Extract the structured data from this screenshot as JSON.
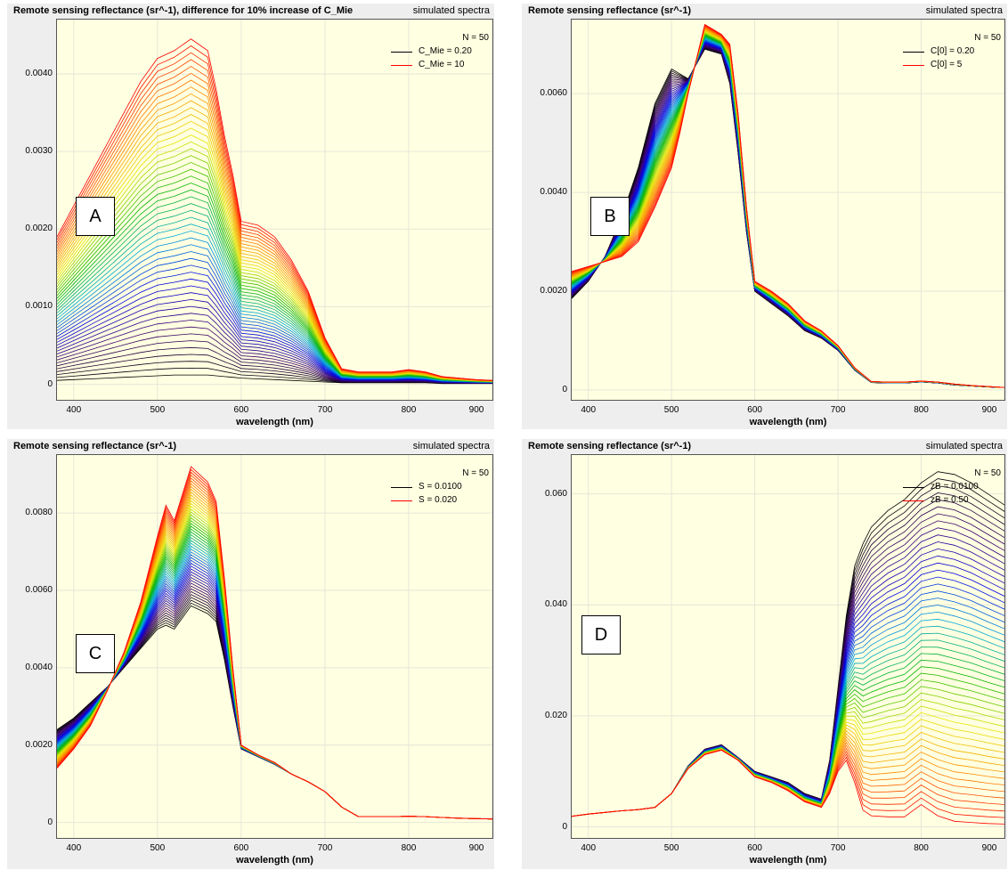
{
  "colors": {
    "background": "#eeeeee",
    "plot_bg": "#ffffe1",
    "grid": "#e6e6d8",
    "start": "#000000",
    "end": "#ff0000"
  },
  "panels": [
    {
      "title": "Remote sensing reflectance (sr^-1), difference for 10% increase of C_Mie",
      "subtitle": "simulated spectra",
      "label": "A",
      "xlabel": "wavelength (nm)",
      "n_label": "N = 50",
      "legend": [
        "C_Mie = 0.20",
        "C_Mie = 10"
      ],
      "yticks": [
        "0",
        "0.0010",
        "0.0020",
        "0.0030",
        "0.0040"
      ],
      "xticks": [
        "400",
        "500",
        "600",
        "700",
        "800",
        "900"
      ],
      "chart_data": {
        "type": "line",
        "n_series": 50,
        "xlim": [
          380,
          900
        ],
        "ylim": [
          -0.0002,
          0.0047
        ],
        "x": [
          380,
          400,
          420,
          440,
          460,
          480,
          500,
          520,
          540,
          560,
          570,
          580,
          590,
          600,
          620,
          640,
          660,
          680,
          700,
          720,
          740,
          760,
          780,
          800,
          820,
          840,
          860,
          880,
          900
        ],
        "start": [
          5e-05,
          6e-05,
          7e-05,
          8e-05,
          9e-05,
          0.0001,
          0.00011,
          0.00012,
          0.00012,
          0.00012,
          0.00011,
          0.0001,
          9e-05,
          8e-05,
          7e-05,
          6e-05,
          5e-05,
          4e-05,
          3e-05,
          2e-05,
          2e-05,
          2e-05,
          2e-05,
          2e-05,
          2e-05,
          1e-05,
          1e-05,
          1e-05,
          1e-05
        ],
        "end": [
          0.0019,
          0.0023,
          0.0027,
          0.0031,
          0.0035,
          0.0039,
          0.0042,
          0.0043,
          0.00445,
          0.0043,
          0.0038,
          0.0032,
          0.0027,
          0.0021,
          0.00205,
          0.0019,
          0.0016,
          0.0012,
          0.0006,
          0.0002,
          0.00016,
          0.00016,
          0.00016,
          0.00019,
          0.00016,
          0.0001,
          8e-05,
          6e-05,
          5e-05
        ]
      }
    },
    {
      "title": "Remote sensing reflectance (sr^-1)",
      "subtitle": "simulated spectra",
      "label": "B",
      "xlabel": "wavelength (nm)",
      "n_label": "N = 50",
      "legend": [
        "C[0] = 0.20",
        "C[0] = 5"
      ],
      "yticks": [
        "0",
        "0.0020",
        "0.0040",
        "0.0060"
      ],
      "xticks": [
        "400",
        "500",
        "600",
        "700",
        "800",
        "900"
      ],
      "chart_data": {
        "type": "line",
        "n_series": 50,
        "xlim": [
          380,
          900
        ],
        "ylim": [
          -0.0002,
          0.0075
        ],
        "x": [
          380,
          400,
          420,
          440,
          460,
          480,
          500,
          510,
          520,
          540,
          560,
          570,
          580,
          590,
          600,
          620,
          640,
          660,
          680,
          700,
          720,
          740,
          760,
          780,
          800,
          820,
          840,
          860,
          880,
          900
        ],
        "start": [
          0.00185,
          0.0022,
          0.0027,
          0.0035,
          0.0045,
          0.0058,
          0.0065,
          0.0064,
          0.0063,
          0.0069,
          0.0068,
          0.0062,
          0.0048,
          0.0032,
          0.002,
          0.00175,
          0.0015,
          0.0012,
          0.00105,
          0.0008,
          0.0004,
          0.00015,
          0.00014,
          0.00014,
          0.00016,
          0.00014,
          0.0001,
          8e-05,
          6e-05,
          5e-05
        ],
        "end": [
          0.0024,
          0.0025,
          0.0026,
          0.0027,
          0.003,
          0.0037,
          0.0045,
          0.0052,
          0.006,
          0.0074,
          0.0072,
          0.007,
          0.0056,
          0.0037,
          0.0022,
          0.002,
          0.00175,
          0.0014,
          0.0012,
          0.0009,
          0.00045,
          0.00017,
          0.00016,
          0.00016,
          0.00018,
          0.00016,
          0.00012,
          9e-05,
          7e-05,
          5e-05
        ]
      }
    },
    {
      "title": "Remote sensing reflectance (sr^-1)",
      "subtitle": "simulated spectra",
      "label": "C",
      "xlabel": "wavelength (nm)",
      "n_label": "N = 50",
      "legend": [
        "S = 0.0100",
        "S = 0.020"
      ],
      "yticks": [
        "0",
        "0.0020",
        "0.0040",
        "0.0060",
        "0.0080"
      ],
      "xticks": [
        "400",
        "500",
        "600",
        "700",
        "800",
        "900"
      ],
      "chart_data": {
        "type": "line",
        "n_series": 50,
        "xlim": [
          380,
          900
        ],
        "ylim": [
          -0.0004,
          0.0095
        ],
        "x": [
          380,
          400,
          420,
          440,
          460,
          480,
          500,
          510,
          520,
          540,
          560,
          570,
          580,
          590,
          600,
          620,
          640,
          660,
          680,
          700,
          720,
          740,
          760,
          780,
          800,
          820,
          840,
          860,
          880,
          900
        ],
        "start": [
          0.0024,
          0.0027,
          0.0031,
          0.0035,
          0.004,
          0.0045,
          0.005,
          0.0051,
          0.005,
          0.0056,
          0.0054,
          0.0052,
          0.0042,
          0.003,
          0.0019,
          0.0017,
          0.0015,
          0.00125,
          0.00105,
          0.0008,
          0.0004,
          0.00015,
          0.00015,
          0.00015,
          0.00016,
          0.00015,
          0.00013,
          0.00011,
          0.0001,
          9e-05
        ],
        "end": [
          0.0014,
          0.0019,
          0.0025,
          0.0034,
          0.0044,
          0.0057,
          0.0074,
          0.0082,
          0.0078,
          0.0092,
          0.0088,
          0.0083,
          0.0063,
          0.004,
          0.002,
          0.00175,
          0.00155,
          0.00125,
          0.00105,
          0.0008,
          0.0004,
          0.00015,
          0.00015,
          0.00015,
          0.00016,
          0.00015,
          0.00013,
          0.00011,
          0.0001,
          9e-05
        ]
      }
    },
    {
      "title": "Remote sensing reflectance (sr^-1)",
      "subtitle": "simulated spectra",
      "label": "D",
      "xlabel": "wavelength (nm)",
      "n_label": "N = 50",
      "legend": [
        "zB = 0.0100",
        "zB = 0.50"
      ],
      "yticks": [
        "0",
        "0.020",
        "0.040",
        "0.060"
      ],
      "xticks": [
        "400",
        "500",
        "600",
        "700",
        "800",
        "900"
      ],
      "chart_data": {
        "type": "line",
        "n_series": 50,
        "xlim": [
          380,
          900
        ],
        "ylim": [
          -0.002,
          0.067
        ],
        "x": [
          380,
          400,
          420,
          440,
          460,
          480,
          500,
          520,
          540,
          560,
          580,
          600,
          620,
          640,
          660,
          680,
          690,
          700,
          710,
          720,
          730,
          740,
          760,
          780,
          800,
          820,
          840,
          860,
          880,
          900
        ],
        "start": [
          0.0019,
          0.0023,
          0.0026,
          0.0029,
          0.0031,
          0.0035,
          0.006,
          0.011,
          0.014,
          0.0148,
          0.0125,
          0.01,
          0.009,
          0.008,
          0.006,
          0.005,
          0.012,
          0.025,
          0.038,
          0.047,
          0.051,
          0.054,
          0.057,
          0.059,
          0.062,
          0.064,
          0.0635,
          0.062,
          0.06,
          0.058
        ],
        "end": [
          0.0019,
          0.0023,
          0.0026,
          0.0029,
          0.0031,
          0.0035,
          0.006,
          0.0105,
          0.013,
          0.0138,
          0.012,
          0.009,
          0.008,
          0.0065,
          0.0045,
          0.0035,
          0.006,
          0.01,
          0.012,
          0.008,
          0.003,
          0.002,
          0.0018,
          0.0018,
          0.004,
          0.002,
          0.001,
          0.0008,
          0.0006,
          0.0005
        ]
      }
    }
  ]
}
